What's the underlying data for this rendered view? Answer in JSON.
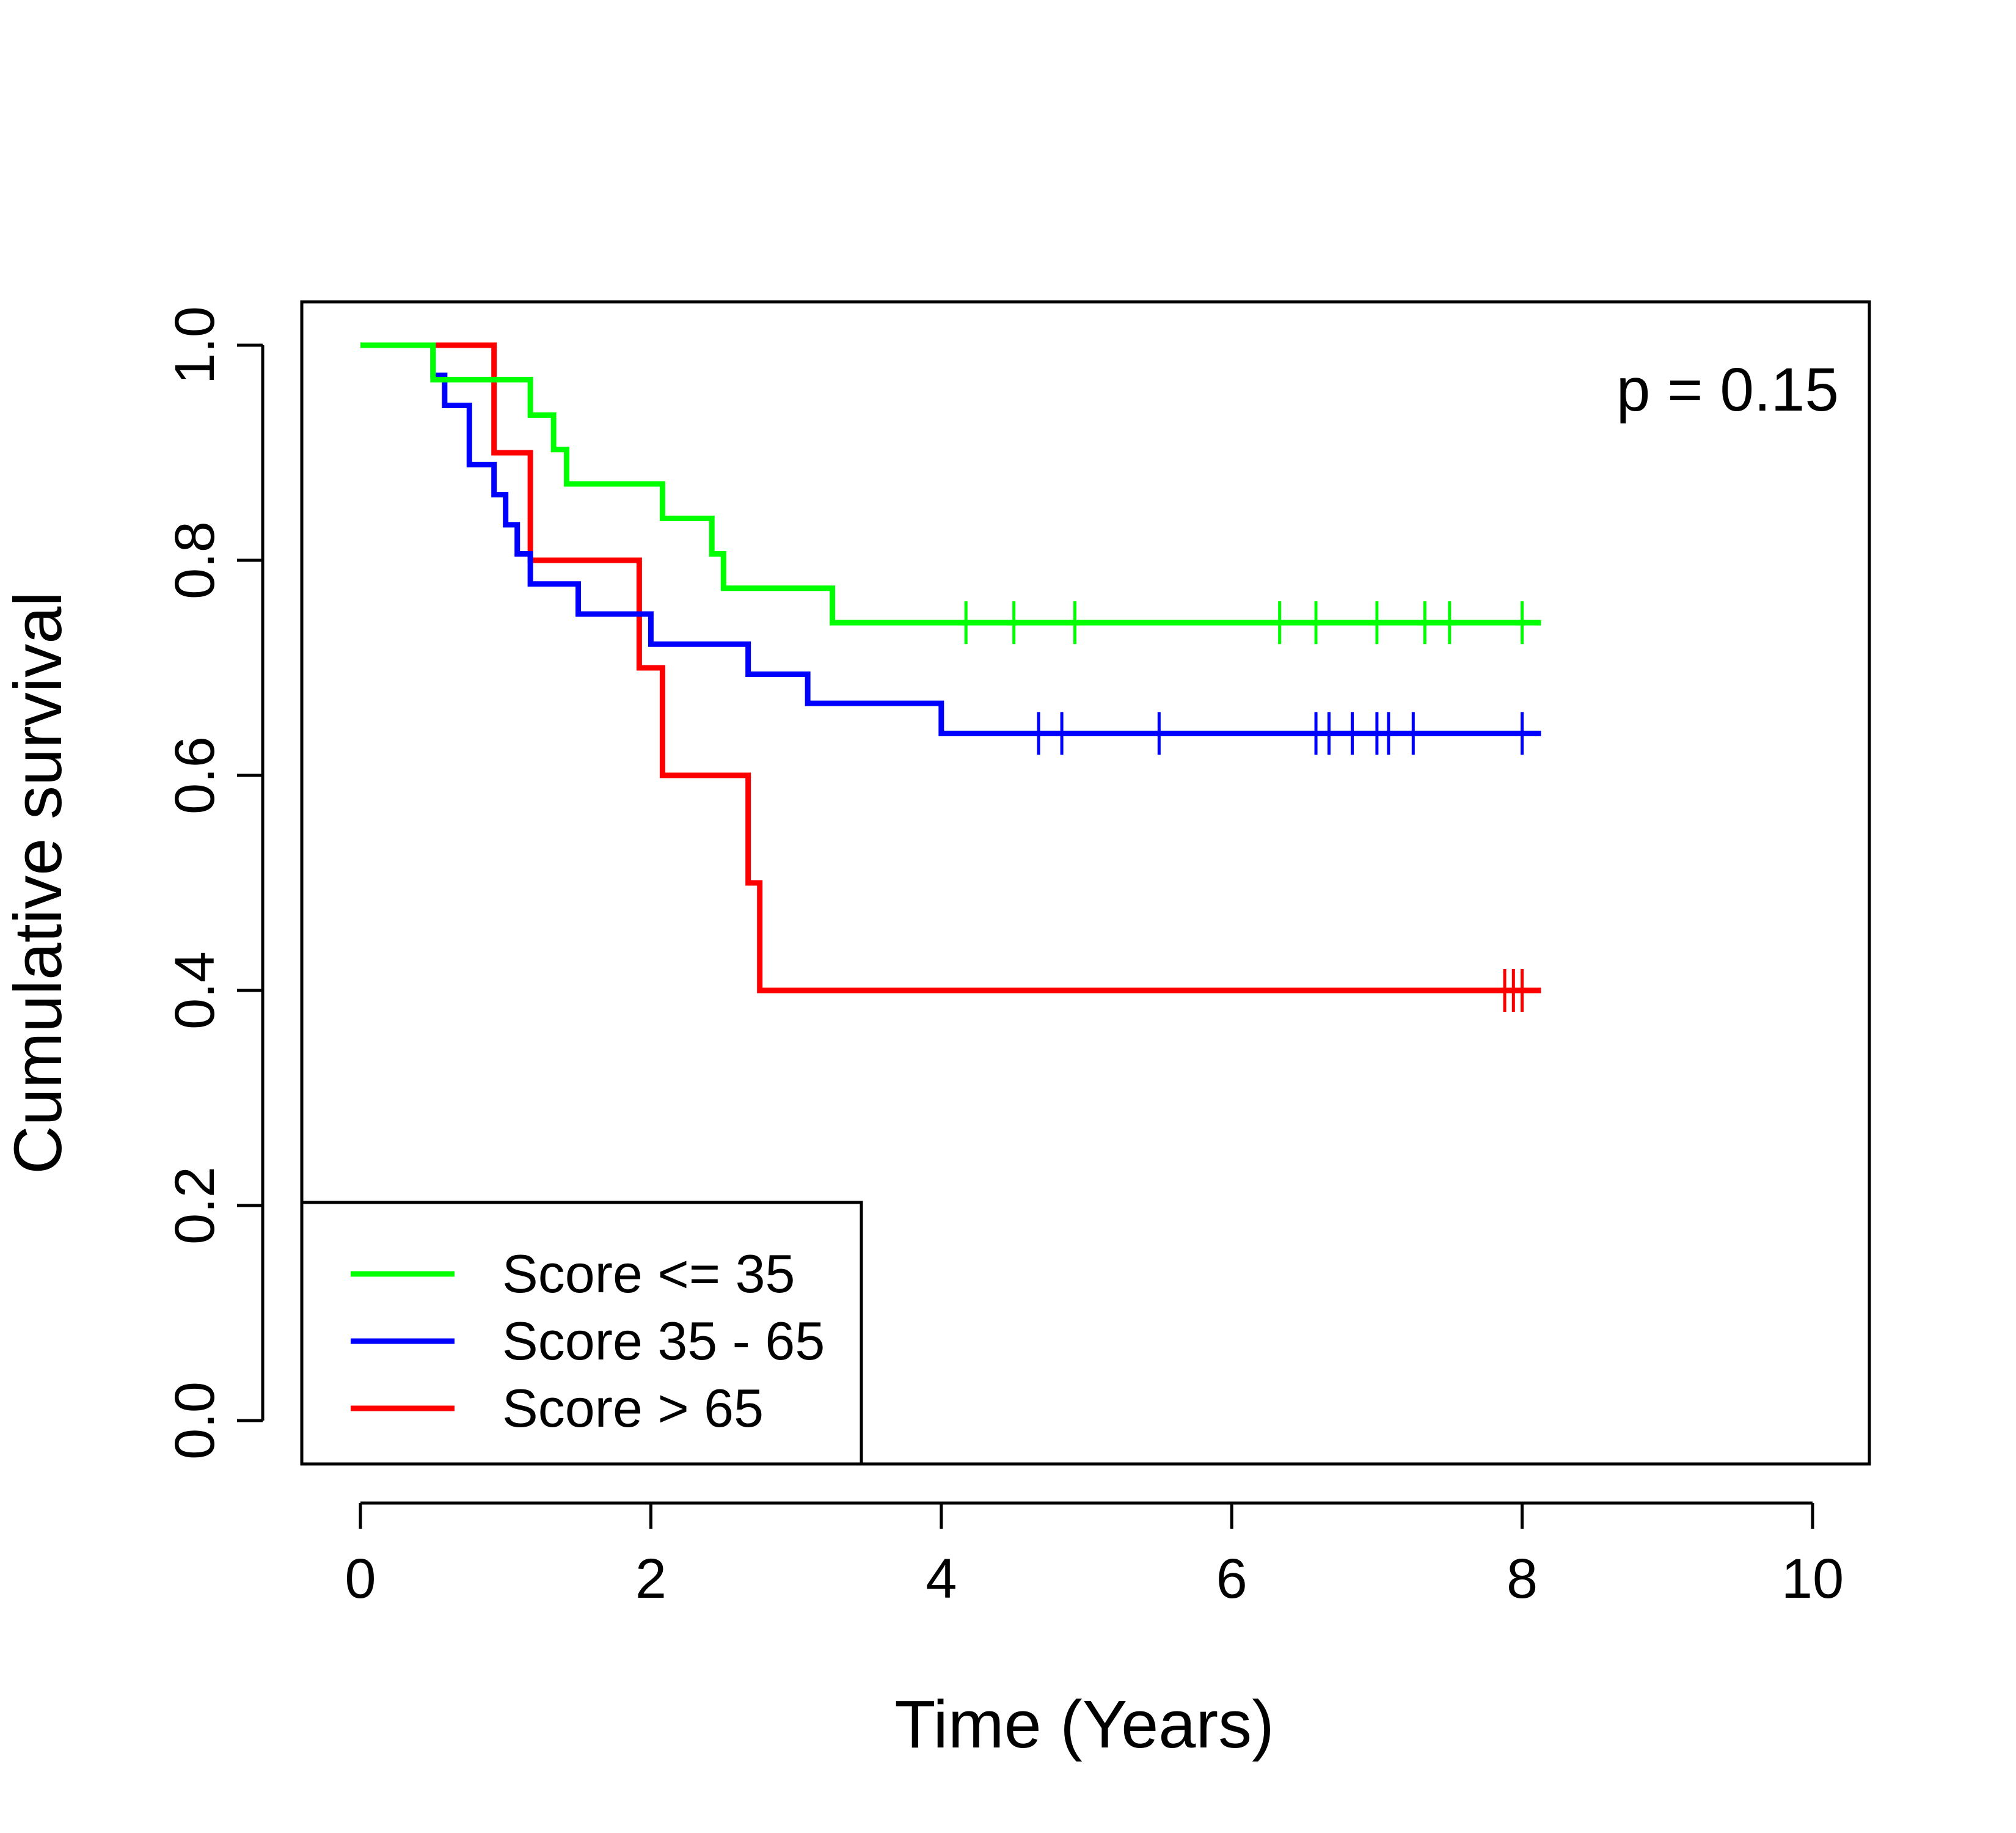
{
  "chart_data": {
    "type": "line",
    "title": "",
    "xlabel": "Time (Years)",
    "ylabel": "Cumulative survival",
    "xlim": [
      0,
      10
    ],
    "ylim": [
      0,
      1
    ],
    "xticks": [
      0,
      2,
      4,
      6,
      8,
      10
    ],
    "yticks": [
      0.0,
      0.2,
      0.4,
      0.6,
      0.8,
      1.0
    ],
    "xtick_labels": [
      "0",
      "2",
      "4",
      "6",
      "8",
      "10"
    ],
    "ytick_labels": [
      "0.0",
      "0.2",
      "0.4",
      "0.6",
      "0.8",
      "1.0"
    ],
    "annotation": "p = 0.15",
    "legend_position": "bottom-left",
    "grid": false,
    "series": [
      {
        "name": "Score <= 35",
        "color": "#00ff00",
        "steps": [
          [
            0,
            1.0
          ],
          [
            0.5,
            0.968
          ],
          [
            1.17,
            0.935
          ],
          [
            1.33,
            0.903
          ],
          [
            1.42,
            0.871
          ],
          [
            2.08,
            0.839
          ],
          [
            2.42,
            0.806
          ],
          [
            2.5,
            0.774
          ],
          [
            3.25,
            0.742
          ]
        ],
        "end_x": 8.13,
        "censored": [
          4.17,
          4.5,
          4.92,
          6.33,
          6.58,
          7.0,
          7.33,
          7.5,
          8.0
        ]
      },
      {
        "name": "Score 35 - 65",
        "color": "#0000ff",
        "steps": [
          [
            0,
            1.0
          ],
          [
            0.5,
            0.972
          ],
          [
            0.58,
            0.944
          ],
          [
            0.75,
            0.889
          ],
          [
            0.92,
            0.861
          ],
          [
            1.0,
            0.833
          ],
          [
            1.08,
            0.806
          ],
          [
            1.17,
            0.778
          ],
          [
            1.5,
            0.75
          ],
          [
            2.0,
            0.722
          ],
          [
            2.67,
            0.694
          ],
          [
            3.08,
            0.667
          ],
          [
            4.0,
            0.639
          ]
        ],
        "end_x": 8.13,
        "censored": [
          4.67,
          4.83,
          5.5,
          6.58,
          6.67,
          6.83,
          7.0,
          7.08,
          7.25,
          8.0
        ]
      },
      {
        "name": "Score > 65",
        "color": "#ff0000",
        "steps": [
          [
            0,
            1.0
          ],
          [
            0.92,
            0.9
          ],
          [
            1.17,
            0.8
          ],
          [
            1.92,
            0.7
          ],
          [
            2.08,
            0.6
          ],
          [
            2.67,
            0.5
          ],
          [
            2.75,
            0.4
          ]
        ],
        "end_x": 8.13,
        "censored": [
          7.88,
          7.94,
          8.0
        ]
      }
    ]
  }
}
